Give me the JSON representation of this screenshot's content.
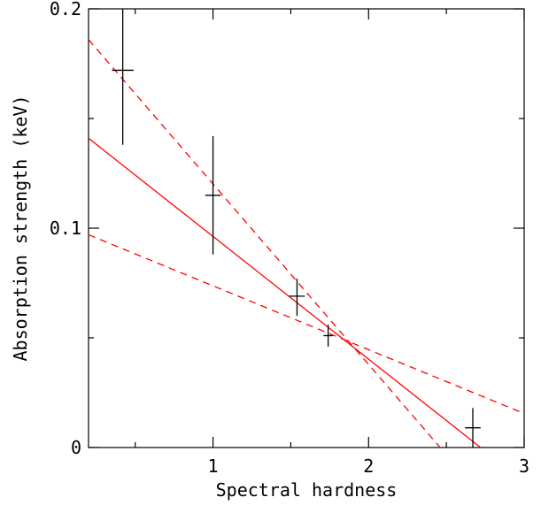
{
  "chart_data": {
    "type": "scatter",
    "title": "",
    "xlabel": "Spectral hardness",
    "ylabel": "Absorption strength (keV)",
    "xlim": [
      0.2,
      3.0
    ],
    "ylim": [
      0,
      0.2
    ],
    "x_ticks": [
      1,
      2,
      3
    ],
    "x_tick_labels": [
      "1",
      "2",
      "3"
    ],
    "y_ticks": [
      0,
      0.1,
      0.2
    ],
    "y_tick_labels": [
      "0",
      "0.1",
      "0.2"
    ],
    "x_minor_ticks": [
      0.5,
      1.5,
      2.5
    ],
    "y_minor_ticks": [
      0.05,
      0.15
    ],
    "grid": false,
    "points": [
      {
        "x": 0.42,
        "y": 0.172,
        "xerr": 0.07,
        "yerr_low": 0.034,
        "yerr_high": 0.03
      },
      {
        "x": 1.0,
        "y": 0.115,
        "xerr": 0.05,
        "yerr_low": 0.027,
        "yerr_high": 0.027
      },
      {
        "x": 1.54,
        "y": 0.069,
        "xerr": 0.05,
        "yerr_low": 0.009,
        "yerr_high": 0.008
      },
      {
        "x": 1.74,
        "y": 0.051,
        "xerr": 0.03,
        "yerr_low": 0.005,
        "yerr_high": 0.005
      },
      {
        "x": 2.67,
        "y": 0.009,
        "xerr": 0.05,
        "yerr_low": 0.009,
        "yerr_high": 0.009
      }
    ],
    "lines": [
      {
        "style": "solid",
        "color": "#ff0000",
        "x": [
          0.2,
          2.72
        ],
        "y": [
          0.141,
          0.0
        ]
      },
      {
        "style": "dashed",
        "color": "#ff0000",
        "x": [
          0.2,
          2.46
        ],
        "y": [
          0.186,
          0.0
        ]
      },
      {
        "style": "dashed",
        "color": "#ff0000",
        "x": [
          0.2,
          3.0
        ],
        "y": [
          0.097,
          0.0155
        ]
      }
    ],
    "point_color": "#000000",
    "frame_color": "#000000"
  }
}
